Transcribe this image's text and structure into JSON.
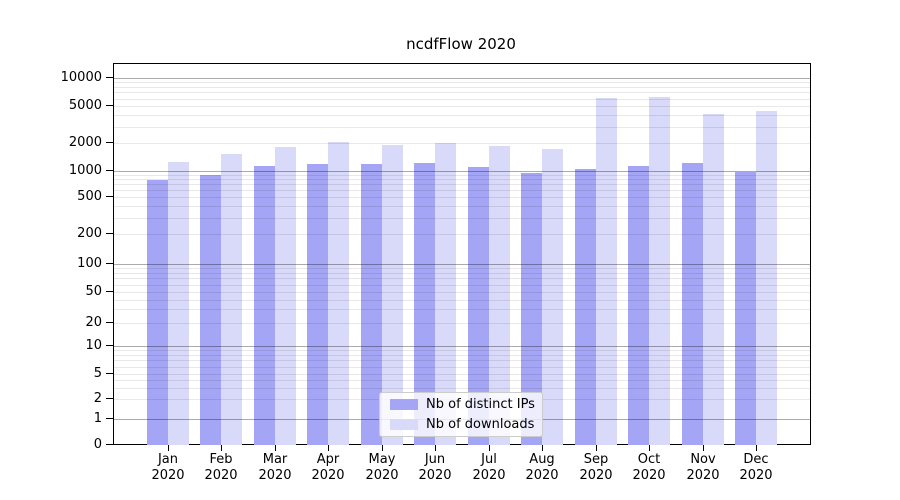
{
  "chart_data": {
    "type": "bar",
    "title": "ncdfFlow 2020",
    "categories": [
      "Jan 2020",
      "Feb 2020",
      "Mar 2020",
      "Apr 2020",
      "May 2020",
      "Jun 2020",
      "Jul 2020",
      "Aug 2020",
      "Sep 2020",
      "Oct 2020",
      "Nov 2020",
      "Dec 2020"
    ],
    "months": [
      "Jan",
      "Feb",
      "Mar",
      "Apr",
      "May",
      "Jun",
      "Jul",
      "Aug",
      "Sep",
      "Oct",
      "Nov",
      "Dec"
    ],
    "year_label": "2020",
    "series": [
      {
        "name": "Nb of distinct IPs",
        "color": "#a5a5f5",
        "values": [
          780,
          900,
          1130,
          1190,
          1190,
          1220,
          1100,
          950,
          1050,
          1130,
          1220,
          980
        ]
      },
      {
        "name": "Nb of downloads",
        "color": "#d9d9f9",
        "values": [
          1250,
          1520,
          1830,
          2050,
          1900,
          2000,
          1850,
          1720,
          6100,
          6300,
          4100,
          4400
        ]
      }
    ],
    "yscale": "symlog",
    "ylim": [
      0,
      10000
    ],
    "yticks": [
      0,
      1,
      2,
      5,
      10,
      20,
      50,
      100,
      200,
      500,
      1000,
      2000,
      5000,
      10000
    ],
    "grid": true,
    "legend_position": "lower center"
  }
}
